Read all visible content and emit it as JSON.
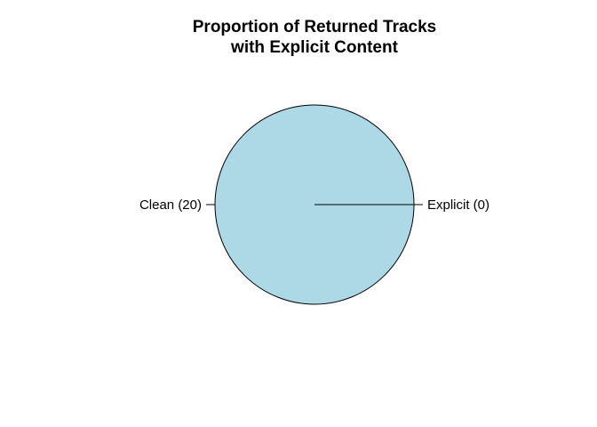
{
  "chart_data": {
    "type": "pie",
    "title": [
      "Proportion of Returned Tracks",
      "with Explicit Content"
    ],
    "slices": [
      {
        "category": "Explicit",
        "value": 0,
        "label": "Explicit (0)",
        "color": "#add8e6"
      },
      {
        "category": "Clean",
        "value": 20,
        "label": "Clean (20)",
        "color": "#add8e6"
      }
    ],
    "colors": {
      "fill": "#add8e6",
      "border": "#000000",
      "background": "#ffffff"
    }
  }
}
